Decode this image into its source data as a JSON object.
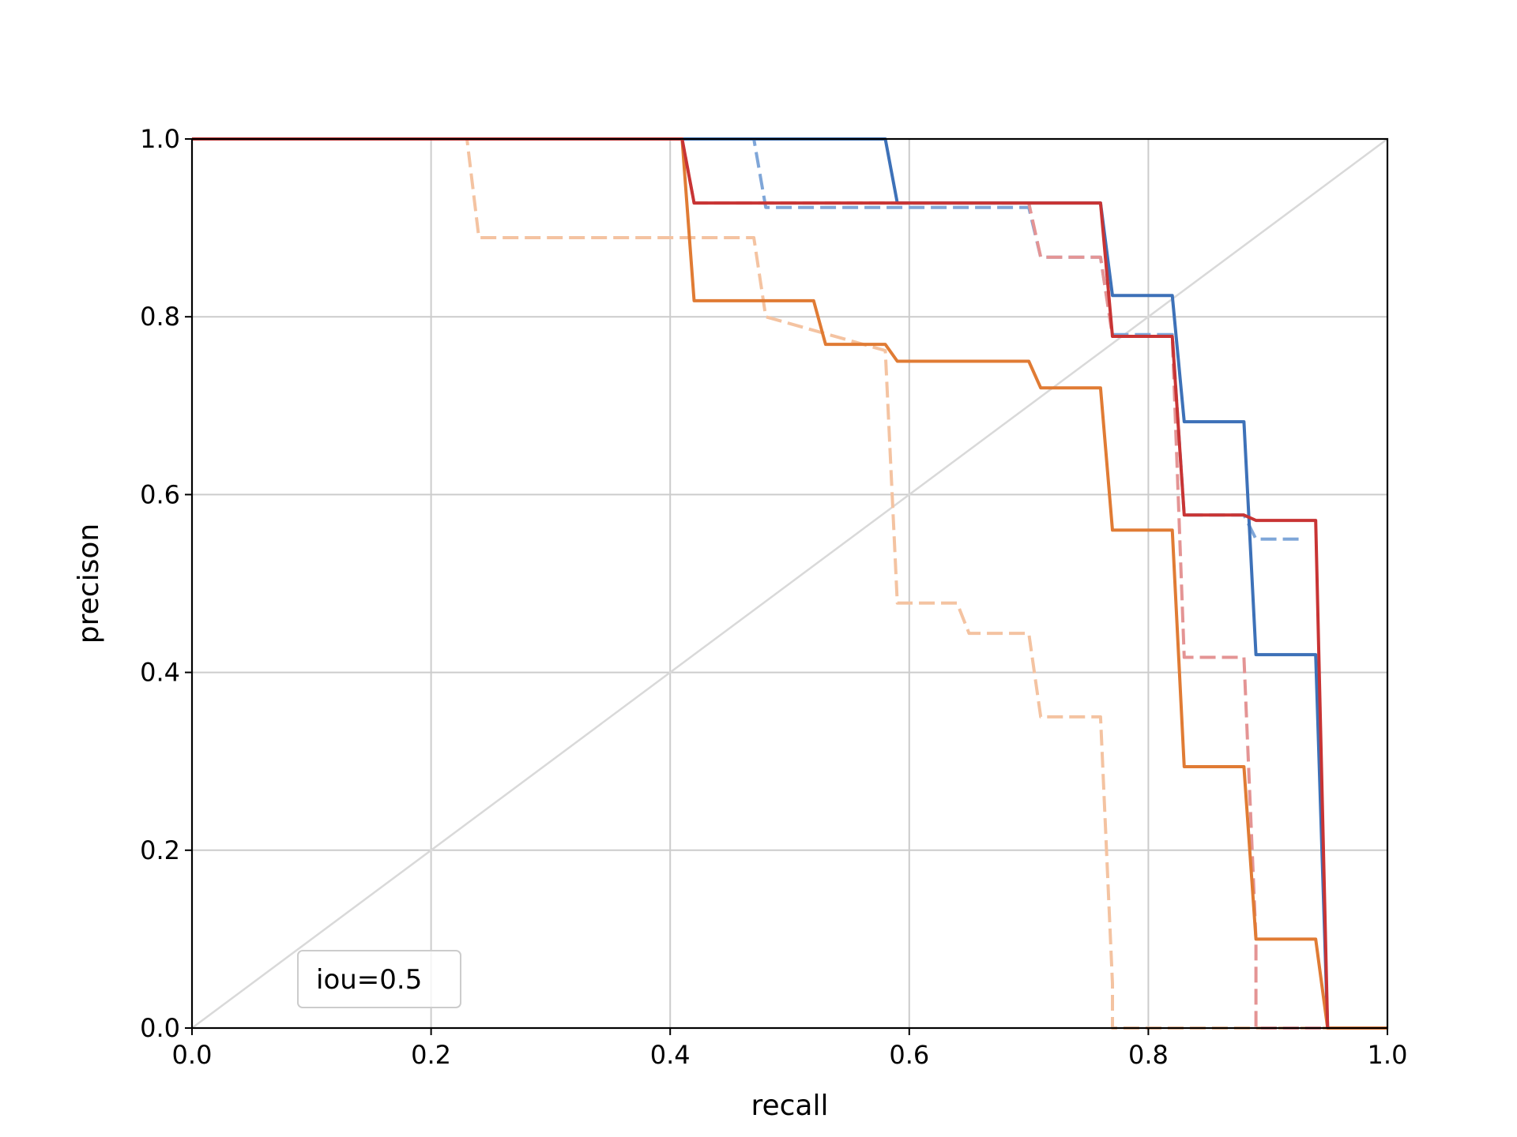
{
  "chart_data": {
    "type": "line",
    "title": "",
    "xlabel": "recall",
    "ylabel": "precison",
    "xlim": [
      0,
      1
    ],
    "ylim": [
      0,
      1
    ],
    "xticks": [
      "0.0",
      "0.2",
      "0.4",
      "0.6",
      "0.8",
      "1.0"
    ],
    "yticks": [
      "0.0",
      "0.2",
      "0.4",
      "0.6",
      "0.8",
      "1.0"
    ],
    "grid": true,
    "annotation": "iou=0.5",
    "annotation_placement": "bottom-left",
    "reference_line": {
      "name": "diagonal",
      "x": [
        0,
        1
      ],
      "y": [
        0,
        1
      ],
      "color": "#d9d9d9"
    },
    "series": [
      {
        "name": "light-orange-dashed",
        "color": "#f4c3a1",
        "style": "dashed",
        "x": [
          0,
          0.23,
          0.24,
          0.47,
          0.48,
          0.58,
          0.59,
          0.64,
          0.65,
          0.7,
          0.71,
          0.76,
          0.77,
          0.77,
          1.0
        ],
        "y": [
          1,
          1,
          0.889,
          0.889,
          0.8,
          0.762,
          0.478,
          0.478,
          0.444,
          0.444,
          0.35,
          0.35,
          0.05,
          0,
          0
        ]
      },
      {
        "name": "light-blue-dashed",
        "color": "#7fa6d8",
        "style": "dashed",
        "x": [
          0,
          0.47,
          0.48,
          0.7,
          0.71,
          0.76,
          0.77,
          0.82,
          0.83,
          0.88,
          0.89,
          0.93
        ],
        "y": [
          1,
          1,
          0.923,
          0.923,
          0.867,
          0.867,
          0.78,
          0.78,
          0.577,
          0.577,
          0.55,
          0.55
        ]
      },
      {
        "name": "light-red-dashed",
        "color": "#e49494",
        "style": "dashed",
        "x": [
          0,
          0.41,
          0.42,
          0.7,
          0.71,
          0.76,
          0.77,
          0.82,
          0.83,
          0.88,
          0.89,
          0.89,
          1.0
        ],
        "y": [
          1,
          1,
          0.928,
          0.928,
          0.867,
          0.867,
          0.778,
          0.778,
          0.417,
          0.417,
          0.1,
          0,
          0
        ]
      },
      {
        "name": "blue-solid",
        "color": "#3d71b8",
        "style": "solid",
        "x": [
          0,
          0.58,
          0.59,
          0.76,
          0.77,
          0.82,
          0.83,
          0.88,
          0.89,
          0.94,
          0.95
        ],
        "y": [
          1,
          1,
          0.928,
          0.928,
          0.824,
          0.824,
          0.682,
          0.682,
          0.42,
          0.42,
          0
        ]
      },
      {
        "name": "orange-solid",
        "color": "#e07b34",
        "style": "solid",
        "x": [
          0,
          0.41,
          0.42,
          0.52,
          0.53,
          0.58,
          0.59,
          0.7,
          0.71,
          0.76,
          0.77,
          0.82,
          0.83,
          0.88,
          0.89,
          0.94,
          0.95,
          1.0
        ],
        "y": [
          1,
          1,
          0.818,
          0.818,
          0.769,
          0.769,
          0.75,
          0.75,
          0.72,
          0.72,
          0.56,
          0.56,
          0.294,
          0.294,
          0.1,
          0.1,
          0,
          0
        ]
      },
      {
        "name": "red-solid",
        "color": "#c83434",
        "style": "solid",
        "x": [
          0,
          0.41,
          0.42,
          0.76,
          0.77,
          0.82,
          0.83,
          0.88,
          0.89,
          0.94,
          0.95
        ],
        "y": [
          1,
          1,
          0.928,
          0.928,
          0.778,
          0.778,
          0.577,
          0.577,
          0.571,
          0.571,
          0
        ]
      }
    ]
  }
}
